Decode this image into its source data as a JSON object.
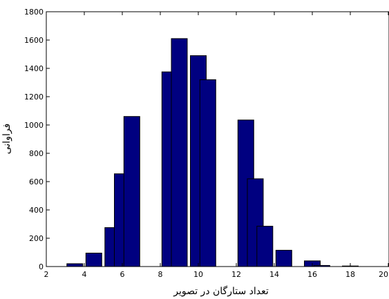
{
  "chart_data": {
    "type": "bar",
    "title": "",
    "xlabel": "تعداد ستارگان در تصویر",
    "ylabel": "فراوانی",
    "xlim": [
      2,
      20
    ],
    "ylim": [
      0,
      1800
    ],
    "xticks": [
      2,
      4,
      6,
      8,
      10,
      12,
      14,
      16,
      18,
      20
    ],
    "yticks": [
      0,
      200,
      400,
      600,
      800,
      1000,
      1200,
      1400,
      1600,
      1800
    ],
    "grid": false,
    "bar_color": "#000080",
    "bars": [
      {
        "x": 3.5,
        "value": 20
      },
      {
        "x": 4.5,
        "value": 95
      },
      {
        "x": 5.5,
        "value": 275
      },
      {
        "x": 6.0,
        "value": 655
      },
      {
        "x": 6.5,
        "value": 1060
      },
      {
        "x": 8.5,
        "value": 1375
      },
      {
        "x": 9.0,
        "value": 1610
      },
      {
        "x": 10.0,
        "value": 1490
      },
      {
        "x": 10.5,
        "value": 1320
      },
      {
        "x": 12.5,
        "value": 1035
      },
      {
        "x": 13.0,
        "value": 620
      },
      {
        "x": 13.5,
        "value": 285
      },
      {
        "x": 14.5,
        "value": 115
      },
      {
        "x": 16.0,
        "value": 40
      },
      {
        "x": 16.5,
        "value": 8
      },
      {
        "x": 18.0,
        "value": 4
      }
    ]
  }
}
